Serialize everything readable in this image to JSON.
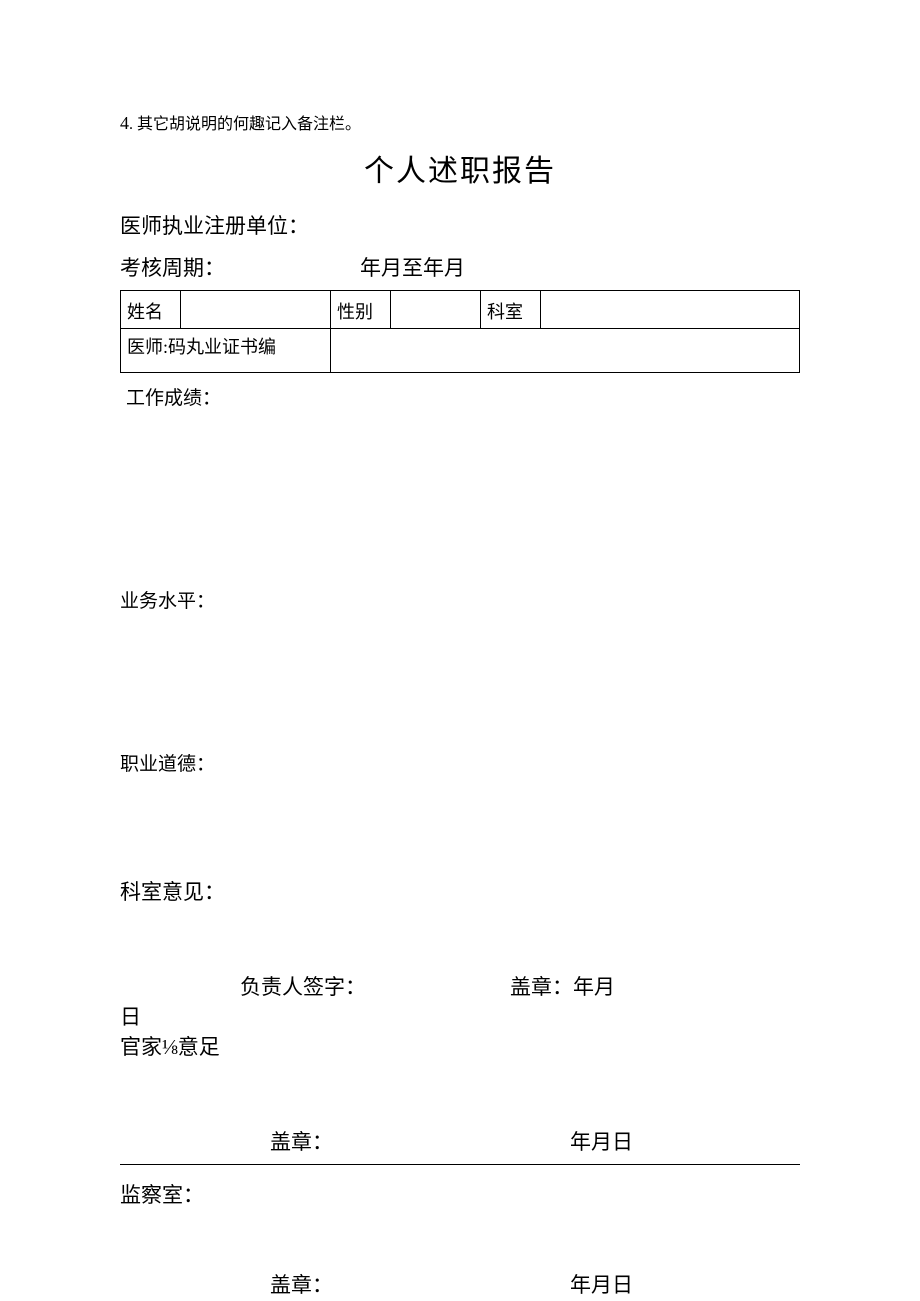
{
  "note": {
    "num": "4",
    "text": ". 其它胡说明的何趣记入备注栏。"
  },
  "title": "个人述职报告",
  "unit_label": "医师执业注册单位：",
  "period": {
    "label": "考核周期：",
    "text": "年月至年月"
  },
  "table": {
    "name_label": "姓名",
    "gender_label": "性别",
    "dept_label": "科室",
    "cert_label": "医师:码丸业证书编"
  },
  "sections": {
    "work": "工作成绩：",
    "skill": "业务水平：",
    "ethics": "职业道德：",
    "dept_opinion": "科室意见：",
    "guanjia": "官家⅛意足",
    "jiancha": "监察室："
  },
  "sign": {
    "responsible": "负责人签字：",
    "seal_ym": "盖章：年月",
    "day": "日",
    "seal": "盖章：",
    "date": "年月日"
  }
}
